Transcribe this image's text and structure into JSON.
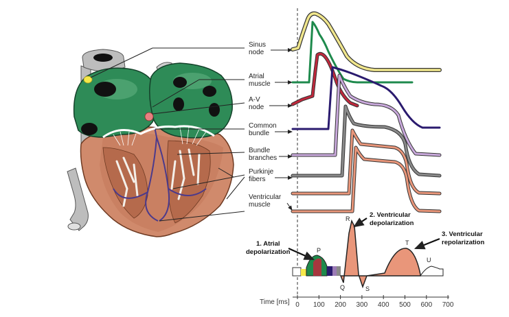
{
  "labels": {
    "sinus": [
      "Sinus",
      "node"
    ],
    "atrial": [
      "Atrial",
      "muscle"
    ],
    "av": [
      "A-V",
      "node"
    ],
    "common": [
      "Common",
      "bundle"
    ],
    "bundle": [
      "Bundle",
      "branches"
    ],
    "purkinje": [
      "Purkinje",
      "fibers"
    ],
    "ventricular": [
      "Ventricular",
      "muscle"
    ]
  },
  "ecg": {
    "wave_labels": {
      "P": "P",
      "Q": "Q",
      "R": "R",
      "S": "S",
      "T": "T",
      "U": "U"
    },
    "annotations": {
      "atrial_depol": [
        "1. Atrial",
        "depolarization"
      ],
      "ventricular_depol": [
        "2. Ventricular",
        "depolarization"
      ],
      "ventricular_repol": [
        "3. Ventricular",
        "repolarization"
      ]
    },
    "axis": {
      "title": "Time [ms]",
      "ticks": [
        "0",
        "100",
        "200",
        "300",
        "400",
        "500",
        "600",
        "700"
      ]
    }
  },
  "colors": {
    "sinus": "#f0e68c",
    "atrial": "#1e8a4c",
    "av": "#c0283c",
    "common": "#2a1a6e",
    "bundle": "#b493c8",
    "purkinje": "#555555",
    "ventricular": "#e9967a",
    "heart_green": "#2e8b57",
    "heart_muscle": "#d08a6c",
    "vessel": "#b8b8b8"
  }
}
